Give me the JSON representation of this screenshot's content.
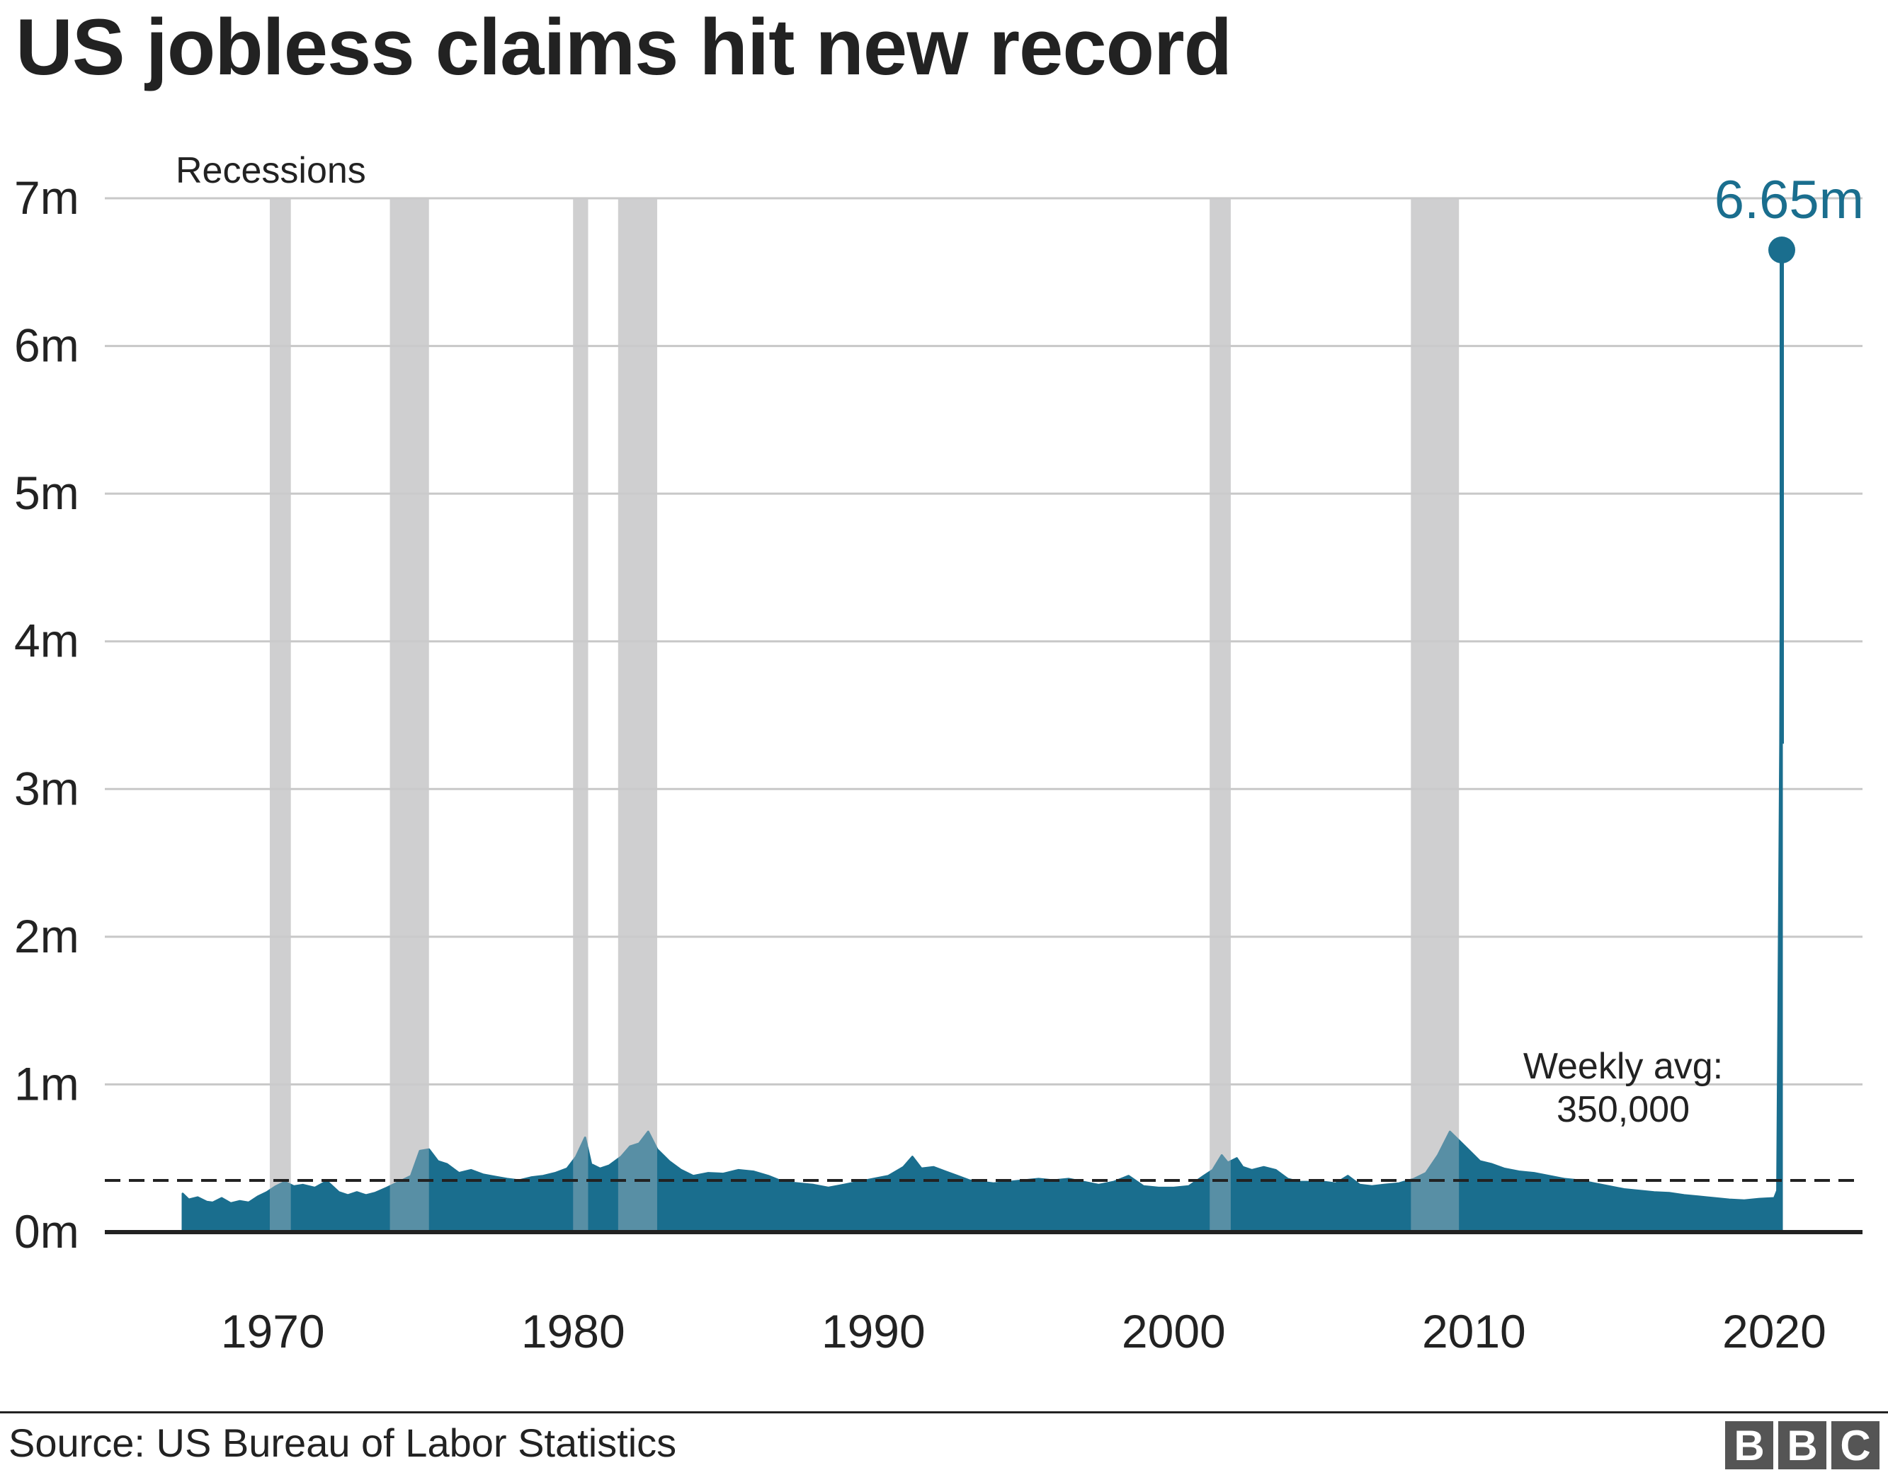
{
  "title": "US jobless claims hit new record",
  "source": "Source: US Bureau of Labor Statistics",
  "logo": [
    "B",
    "B",
    "C"
  ],
  "colors": {
    "series": "#1a6e8e",
    "recession": "#cfcfd0",
    "grid": "#c8c8c8",
    "text": "#222222"
  },
  "chart_data": {
    "type": "area",
    "title": "US jobless claims hit new record",
    "xlabel": "",
    "ylabel": "",
    "xlim": [
      1967,
      2020.3
    ],
    "ylim": [
      0,
      7000000
    ],
    "x_ticks": [
      1970,
      1980,
      1990,
      2000,
      2010,
      2020
    ],
    "x_tick_labels": [
      "1970",
      "1980",
      "1990",
      "2000",
      "2010",
      "2020"
    ],
    "y_ticks": [
      0,
      1000000,
      2000000,
      3000000,
      4000000,
      5000000,
      6000000,
      7000000
    ],
    "y_tick_labels": [
      "0m",
      "1m",
      "2m",
      "3m",
      "4m",
      "5m",
      "6m",
      "7m"
    ],
    "grid": true,
    "recessions_label": "Recessions",
    "recessions": [
      [
        1969.9,
        1970.6
      ],
      [
        1973.9,
        1975.2
      ],
      [
        1980.0,
        1980.5
      ],
      [
        1981.5,
        1982.8
      ],
      [
        2001.2,
        2001.9
      ],
      [
        2007.9,
        2009.5
      ]
    ],
    "reference_line": {
      "value": 350000,
      "label_line1": "Weekly avg:",
      "label_line2": "350,000",
      "style": "dashed"
    },
    "peak_annotation": {
      "x": 2020.25,
      "value": 6650000,
      "label": "6.65m"
    },
    "series": [
      {
        "name": "",
        "x": [
          1967.0,
          1967.2,
          1967.5,
          1967.8,
          1968.0,
          1968.3,
          1968.6,
          1968.9,
          1969.2,
          1969.5,
          1969.8,
          1970.1,
          1970.4,
          1970.7,
          1971.0,
          1971.4,
          1971.8,
          1972.2,
          1972.5,
          1972.8,
          1973.1,
          1973.4,
          1973.8,
          1974.2,
          1974.6,
          1974.9,
          1975.2,
          1975.5,
          1975.8,
          1976.2,
          1976.6,
          1977.0,
          1977.4,
          1977.8,
          1978.2,
          1978.6,
          1979.0,
          1979.4,
          1979.8,
          1980.1,
          1980.4,
          1980.6,
          1980.9,
          1981.2,
          1981.6,
          1981.9,
          1982.2,
          1982.5,
          1982.8,
          1983.2,
          1983.6,
          1984.0,
          1984.5,
          1985.0,
          1985.5,
          1986.0,
          1986.5,
          1987.0,
          1987.5,
          1988.0,
          1988.5,
          1989.0,
          1989.5,
          1990.0,
          1990.5,
          1991.0,
          1991.3,
          1991.6,
          1992.0,
          1992.4,
          1992.8,
          1993.2,
          1993.6,
          1994.0,
          1994.5,
          1995.0,
          1995.5,
          1996.0,
          1996.5,
          1997.0,
          1997.5,
          1998.0,
          1998.5,
          1999.0,
          1999.5,
          2000.0,
          2000.5,
          2001.0,
          2001.3,
          2001.6,
          2001.8,
          2002.1,
          2002.3,
          2002.6,
          2003.0,
          2003.4,
          2003.8,
          2004.2,
          2004.6,
          2005.0,
          2005.4,
          2005.8,
          2006.2,
          2006.6,
          2007.0,
          2007.5,
          2008.0,
          2008.4,
          2008.8,
          2009.2,
          2009.5,
          2009.8,
          2010.2,
          2010.6,
          2011.0,
          2011.5,
          2012.0,
          2012.5,
          2013.0,
          2013.5,
          2014.0,
          2014.5,
          2015.0,
          2015.5,
          2016.0,
          2016.5,
          2017.0,
          2017.5,
          2018.0,
          2018.5,
          2019.0,
          2019.5,
          2020.0,
          2020.1,
          2020.2,
          2020.25
        ],
        "values": [
          260000,
          220000,
          235000,
          205000,
          200000,
          230000,
          195000,
          210000,
          200000,
          240000,
          270000,
          310000,
          340000,
          310000,
          320000,
          300000,
          345000,
          270000,
          250000,
          270000,
          250000,
          265000,
          300000,
          340000,
          380000,
          550000,
          560000,
          480000,
          460000,
          400000,
          420000,
          390000,
          375000,
          360000,
          350000,
          370000,
          380000,
          400000,
          430000,
          510000,
          640000,
          460000,
          430000,
          450000,
          510000,
          580000,
          600000,
          680000,
          560000,
          480000,
          420000,
          380000,
          400000,
          395000,
          420000,
          410000,
          380000,
          340000,
          330000,
          320000,
          300000,
          320000,
          340000,
          360000,
          380000,
          440000,
          510000,
          430000,
          440000,
          410000,
          380000,
          350000,
          340000,
          330000,
          340000,
          350000,
          360000,
          350000,
          360000,
          340000,
          320000,
          340000,
          380000,
          310000,
          300000,
          300000,
          310000,
          380000,
          420000,
          520000,
          470000,
          500000,
          440000,
          420000,
          440000,
          420000,
          360000,
          340000,
          340000,
          340000,
          330000,
          380000,
          320000,
          310000,
          320000,
          330000,
          360000,
          400000,
          520000,
          680000,
          620000,
          560000,
          480000,
          460000,
          430000,
          410000,
          400000,
          380000,
          360000,
          350000,
          330000,
          310000,
          290000,
          280000,
          270000,
          265000,
          250000,
          240000,
          230000,
          220000,
          215000,
          225000,
          230000,
          281000,
          3307000,
          6650000
        ]
      }
    ]
  }
}
